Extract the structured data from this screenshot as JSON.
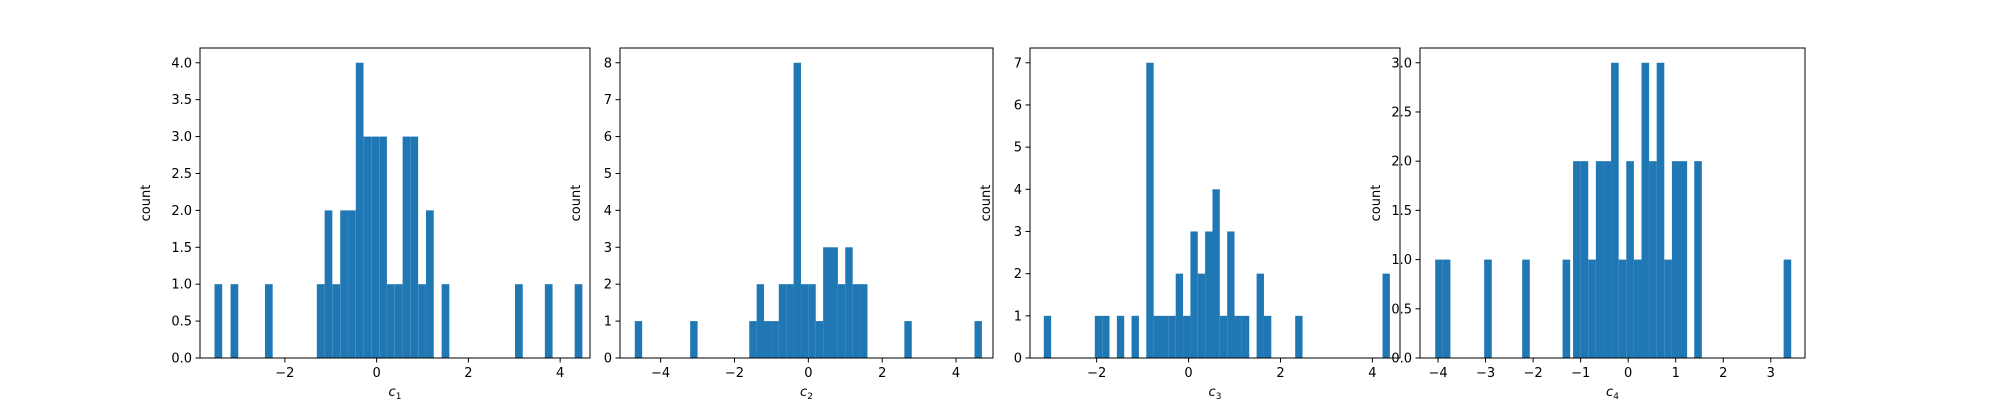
{
  "chart_data": [
    {
      "type": "bar",
      "xlabel_main": "c",
      "xlabel_sub": "1",
      "ylabel": "count",
      "xlim": [
        -3.85,
        4.65
      ],
      "ylim": [
        0,
        4.2
      ],
      "xticks": [
        -2,
        0,
        2,
        4
      ],
      "yticks": [
        0.0,
        0.5,
        1.0,
        1.5,
        2.0,
        2.5,
        3.0,
        3.5,
        4.0
      ],
      "bin_width": 0.168,
      "x": [
        -3.45,
        -3.1,
        -2.35,
        -1.22,
        -1.05,
        -0.88,
        -0.71,
        -0.54,
        -0.37,
        -0.2,
        -0.03,
        0.14,
        0.31,
        0.48,
        0.65,
        0.82,
        0.99,
        1.16,
        1.5,
        3.1,
        3.75,
        4.4
      ],
      "values": [
        1,
        1,
        1,
        1,
        2,
        1,
        2,
        2,
        4,
        3,
        3,
        3,
        1,
        1,
        3,
        3,
        1,
        2,
        1,
        1,
        1,
        1
      ]
    },
    {
      "type": "bar",
      "xlabel_main": "c",
      "xlabel_sub": "2",
      "ylabel": "count",
      "xlim": [
        -5.1,
        5.0
      ],
      "ylim": [
        0,
        8.4
      ],
      "xticks": [
        -4,
        -2,
        0,
        2,
        4
      ],
      "yticks": [
        0,
        1,
        2,
        3,
        4,
        5,
        6,
        7,
        8
      ],
      "bin_width": 0.2,
      "x": [
        -4.6,
        -3.1,
        -1.5,
        -1.3,
        -1.1,
        -0.9,
        -0.7,
        -0.5,
        -0.3,
        -0.1,
        0.1,
        0.3,
        0.5,
        0.7,
        0.9,
        1.1,
        1.3,
        1.5,
        2.7,
        4.6
      ],
      "values": [
        1,
        1,
        1,
        2,
        1,
        1,
        2,
        2,
        8,
        2,
        2,
        1,
        3,
        3,
        2,
        3,
        2,
        2,
        1,
        1
      ]
    },
    {
      "type": "bar",
      "xlabel_main": "c",
      "xlabel_sub": "3",
      "ylabel": "count",
      "xlim": [
        -3.45,
        4.6
      ],
      "ylim": [
        0,
        7.35
      ],
      "xticks": [
        -2,
        0,
        2,
        4
      ],
      "yticks": [
        0,
        1,
        2,
        3,
        4,
        5,
        6,
        7
      ],
      "bin_width": 0.16,
      "x": [
        -3.07,
        -1.96,
        -1.8,
        -1.48,
        -1.16,
        -0.84,
        -0.68,
        -0.52,
        -0.36,
        -0.2,
        -0.04,
        0.12,
        0.28,
        0.44,
        0.6,
        0.76,
        0.92,
        1.08,
        1.24,
        1.56,
        1.72,
        2.4,
        4.3
      ],
      "values": [
        1,
        1,
        1,
        1,
        1,
        7,
        1,
        1,
        1,
        2,
        1,
        3,
        2,
        3,
        4,
        1,
        3,
        1,
        1,
        2,
        1,
        1,
        2
      ]
    },
    {
      "type": "bar",
      "xlabel_main": "c",
      "xlabel_sub": "4",
      "ylabel": "count",
      "xlim": [
        -4.38,
        3.72
      ],
      "ylim": [
        0,
        3.15
      ],
      "xticks": [
        -4,
        -3,
        -2,
        -1,
        0,
        1,
        2,
        3
      ],
      "yticks": [
        0.0,
        0.5,
        1.0,
        1.5,
        2.0,
        2.5,
        3.0
      ],
      "bin_width": 0.16,
      "x": [
        -3.98,
        -3.82,
        -2.95,
        -2.15,
        -1.3,
        -1.08,
        -0.92,
        -0.76,
        -0.6,
        -0.44,
        -0.28,
        -0.12,
        0.04,
        0.2,
        0.36,
        0.52,
        0.68,
        0.84,
        1.0,
        1.16,
        1.47,
        3.35
      ],
      "values": [
        1,
        1,
        1,
        1,
        1,
        2,
        2,
        1,
        2,
        2,
        3,
        1,
        2,
        1,
        3,
        2,
        3,
        1,
        2,
        2,
        2,
        1
      ]
    }
  ],
  "colors": {
    "bar": "#1f77b4",
    "axis": "#000000",
    "background": "#ffffff"
  }
}
